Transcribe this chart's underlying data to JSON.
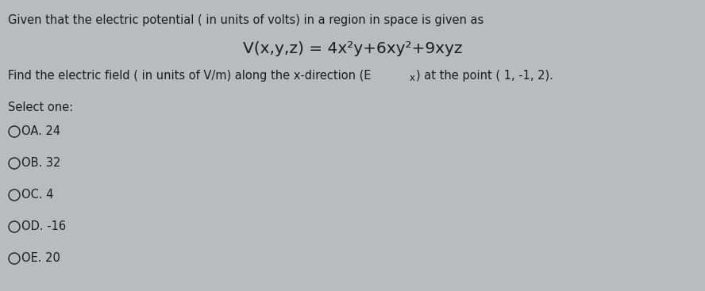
{
  "background_color": "#b8bcbc",
  "stripe_color": "#c4c8c8",
  "line1": "Given that the electric potential ( in units of volts) in a region in space is given as",
  "equation": "V(x,y,z) = 4x²y+6xy²+9xyz",
  "line3_main": "Find the electric field ( in units of V/m) along the x-direction (E",
  "line3_sub": "x",
  "line3_end": ") at the point ( 1, -1, 2).",
  "select_one": "Select one:",
  "options": [
    "A. 24",
    "B. 32",
    "C. 4",
    "D. -16",
    "E. 20"
  ],
  "text_color": "#1c1c1c",
  "font_size_body": 10.5,
  "font_size_equation": 14.5,
  "circle_color": "#2a2a2a",
  "num_stripes": 110
}
